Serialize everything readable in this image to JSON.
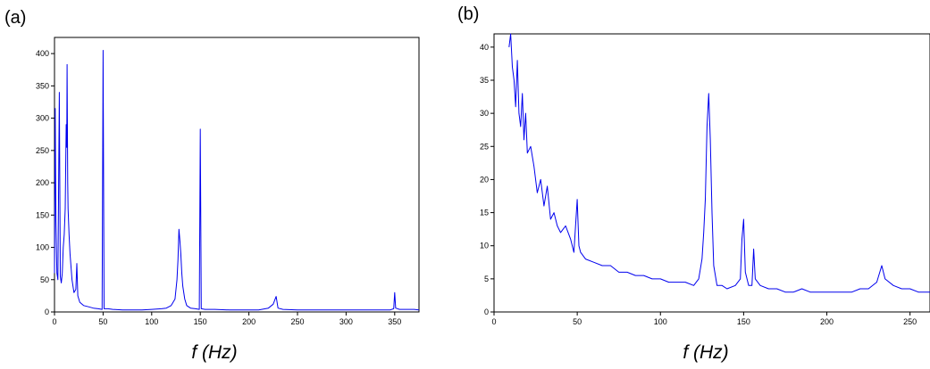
{
  "chart_data": [
    {
      "type": "line",
      "panel_label": "(a)",
      "xlabel": "f (Hz)",
      "ylabel": "",
      "xlim": [
        0,
        375
      ],
      "ylim": [
        0,
        425
      ],
      "x_ticks": [
        0,
        50,
        100,
        150,
        200,
        250,
        300,
        350
      ],
      "y_ticks": [
        0,
        50,
        100,
        150,
        200,
        250,
        300,
        350,
        400
      ],
      "grid": false,
      "color": "#0000ee",
      "series": [
        {
          "x": [
            0,
            0.7,
            1.5,
            2.5,
            3.5,
            5,
            6,
            7,
            8,
            9,
            10,
            11,
            12,
            12.6,
            13,
            13.6,
            14,
            15,
            16,
            17,
            18,
            20,
            22,
            23,
            24,
            26,
            30,
            35,
            40,
            45,
            49,
            50,
            51,
            55,
            60,
            70,
            80,
            90,
            100,
            110,
            115,
            120,
            124,
            126,
            127,
            128,
            129,
            130,
            131,
            132,
            134,
            136,
            140,
            145,
            149,
            150,
            151,
            155,
            165,
            180,
            200,
            210,
            220,
            225,
            228,
            230,
            235,
            250,
            270,
            290,
            310,
            330,
            345,
            349,
            350,
            351,
            355,
            360,
            370,
            375
          ],
          "y": [
            60,
            315,
            140,
            60,
            50,
            340,
            55,
            45,
            60,
            100,
            120,
            160,
            290,
            255,
            383,
            200,
            160,
            120,
            90,
            70,
            50,
            30,
            35,
            75,
            25,
            15,
            10,
            8,
            6,
            5,
            4,
            405,
            5,
            5,
            4,
            3,
            3,
            3,
            4,
            5,
            6,
            10,
            20,
            50,
            80,
            128,
            110,
            90,
            60,
            40,
            20,
            10,
            6,
            5,
            4,
            283,
            5,
            4,
            4,
            3,
            3,
            3,
            6,
            12,
            24,
            6,
            4,
            3,
            3,
            3,
            3,
            3,
            3,
            5,
            30,
            6,
            4,
            4,
            4,
            3
          ]
        }
      ]
    },
    {
      "type": "line",
      "panel_label": "(b)",
      "xlabel": "f (Hz)",
      "ylabel": "",
      "xlim": [
        0,
        262
      ],
      "ylim": [
        0,
        42
      ],
      "x_ticks": [
        0,
        50,
        100,
        150,
        200,
        250
      ],
      "y_ticks": [
        0,
        5,
        10,
        15,
        20,
        25,
        30,
        35,
        40
      ],
      "grid": false,
      "color": "#0000ee",
      "series": [
        {
          "x": [
            9,
            10,
            11,
            12,
            13,
            14,
            15,
            16,
            17,
            18,
            19,
            20,
            22,
            24,
            26,
            28,
            30,
            32,
            34,
            36,
            38,
            40,
            43,
            46,
            48,
            50,
            51,
            52,
            55,
            60,
            65,
            70,
            75,
            80,
            85,
            90,
            95,
            100,
            105,
            110,
            115,
            120,
            123,
            125,
            126,
            127,
            128,
            129,
            130,
            131,
            132,
            134,
            137,
            140,
            145,
            148,
            149,
            150,
            151,
            153,
            155,
            156,
            157,
            160,
            165,
            170,
            175,
            180,
            185,
            190,
            195,
            200,
            205,
            210,
            215,
            220,
            225,
            230,
            233,
            235,
            240,
            245,
            250,
            255,
            262
          ],
          "y": [
            40,
            42,
            37,
            35,
            31,
            38,
            30,
            28,
            33,
            26,
            30,
            24,
            25,
            22,
            18,
            20,
            16,
            19,
            14,
            15,
            13,
            12,
            13,
            11,
            9,
            17,
            10,
            9,
            8,
            7.5,
            7,
            7,
            6,
            6,
            5.5,
            5.5,
            5,
            5,
            4.5,
            4.5,
            4.5,
            4,
            5,
            8,
            12,
            17,
            28,
            33,
            26,
            15,
            7,
            4,
            4,
            3.5,
            4,
            5,
            11,
            14,
            6,
            4,
            4,
            9.5,
            5,
            4,
            3.5,
            3.5,
            3,
            3,
            3.5,
            3,
            3,
            3,
            3,
            3,
            3,
            3.5,
            3.5,
            4.5,
            7,
            5,
            4,
            3.5,
            3.5,
            3,
            3
          ]
        }
      ]
    }
  ]
}
